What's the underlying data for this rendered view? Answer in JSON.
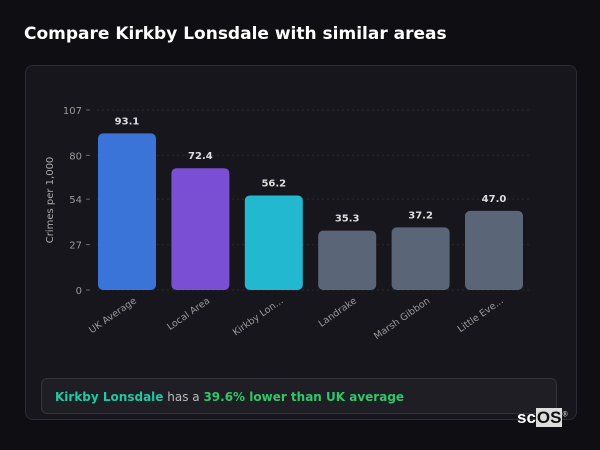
{
  "title": "Compare Kirkby Lonsdale with similar areas",
  "chart_data": {
    "type": "bar",
    "title": "",
    "xlabel": "",
    "ylabel": "Crimes per 1,000",
    "ylim": [
      0,
      107
    ],
    "yticks": [
      0,
      27,
      54,
      80,
      107
    ],
    "grid": true,
    "categories": [
      "UK Average",
      "Local Area",
      "Kirkby Lon...",
      "Landrake",
      "Marsh Gibbon",
      "Little Eve..."
    ],
    "values": [
      93.1,
      72.4,
      56.2,
      35.3,
      37.2,
      47.0
    ],
    "data_labels": [
      "93.1",
      "72.4",
      "56.2",
      "35.3",
      "37.2",
      "47.0"
    ],
    "colors": [
      "#3a74d9",
      "#7b4fd4",
      "#22b8cf",
      "#5a6578",
      "#5a6578",
      "#5a6578"
    ]
  },
  "summary": {
    "place": "Kirkby Lonsdale",
    "middle": " has a ",
    "highlight": "39.6% lower than UK average",
    "place_color": "#20c9a6",
    "highlight_color": "#2fc76a"
  },
  "watermark": {
    "prefix": "sc",
    "boxed": "OS",
    "mark": "®"
  }
}
